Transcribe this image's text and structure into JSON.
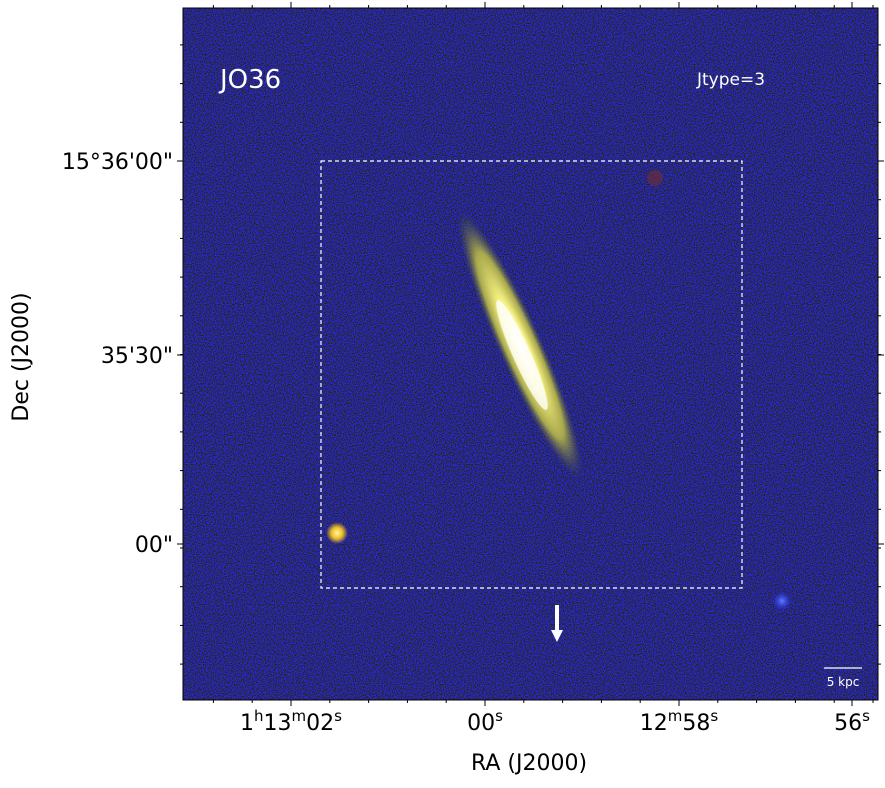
{
  "panel": {
    "title": "JO36",
    "annotation": "Jtype=3",
    "scale_bar": "5 kpc"
  },
  "axes": {
    "x_label": "RA (J2000)",
    "y_label": "Dec (J2000)",
    "x_ticks": [
      [
        "1",
        "h",
        "13",
        "m",
        "02",
        "s"
      ],
      [
        "00",
        "s"
      ],
      [
        "12",
        "m",
        "58",
        "s"
      ],
      [
        "56",
        "s"
      ]
    ],
    "y_ticks": [
      "15°36'00\"",
      "35'30\"",
      "00\""
    ]
  }
}
